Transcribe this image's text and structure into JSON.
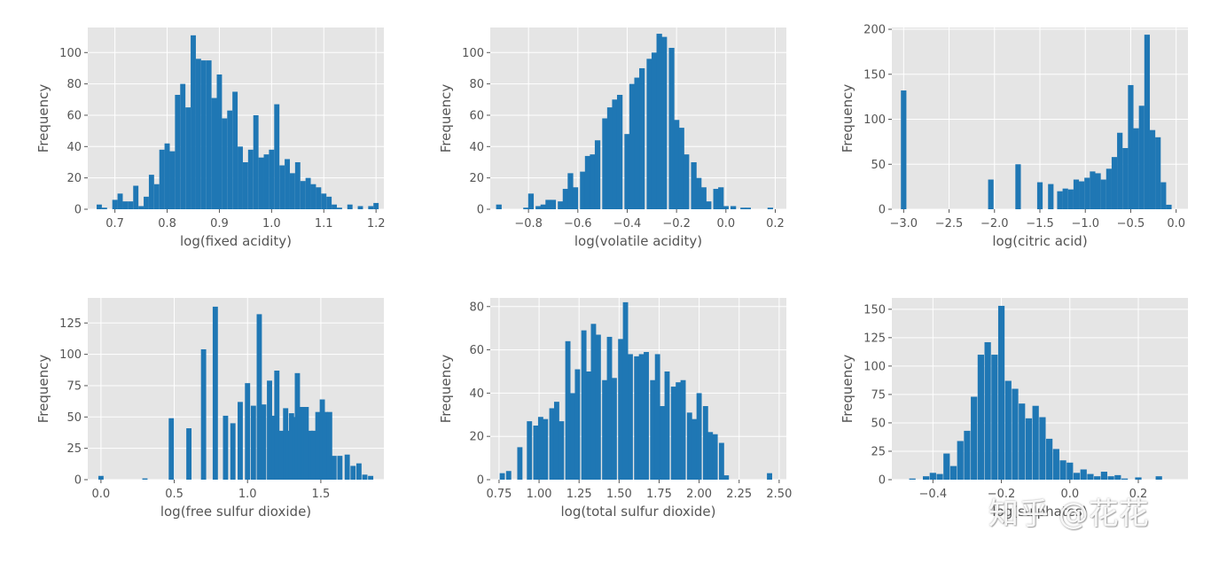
{
  "watermark": "知乎 @花花",
  "colors": {
    "bar": "#1f77b4",
    "panel_bg": "#e5e5e5",
    "grid": "#ffffff",
    "text": "#555555"
  },
  "chart_data": [
    {
      "type": "bar",
      "grid": true,
      "bar_width": 0.01,
      "xlabel": "log(fixed acidity)",
      "ylabel": "Frequency",
      "xlim": [
        0.648,
        1.215
      ],
      "ylim": [
        0,
        116
      ],
      "xticks": [
        0.7,
        0.8,
        0.9,
        1.0,
        1.1,
        1.2
      ],
      "yticks": [
        0,
        20,
        40,
        60,
        80,
        100
      ],
      "x": [
        0.67,
        0.68,
        0.69,
        0.7,
        0.71,
        0.72,
        0.73,
        0.74,
        0.75,
        0.76,
        0.77,
        0.78,
        0.79,
        0.8,
        0.81,
        0.82,
        0.83,
        0.84,
        0.85,
        0.86,
        0.87,
        0.88,
        0.89,
        0.9,
        0.91,
        0.92,
        0.93,
        0.94,
        0.95,
        0.96,
        0.97,
        0.98,
        0.99,
        1.0,
        1.01,
        1.02,
        1.03,
        1.04,
        1.05,
        1.06,
        1.07,
        1.08,
        1.09,
        1.1,
        1.11,
        1.12,
        1.13,
        1.14,
        1.15,
        1.16,
        1.17,
        1.18,
        1.19,
        1.2
      ],
      "values": [
        3,
        1,
        0,
        6,
        10,
        5,
        5,
        15,
        2,
        8,
        22,
        16,
        38,
        42,
        37,
        73,
        80,
        65,
        111,
        96,
        95,
        95,
        71,
        86,
        58,
        63,
        75,
        40,
        30,
        38,
        60,
        33,
        35,
        38,
        67,
        28,
        32,
        23,
        30,
        18,
        20,
        16,
        14,
        10,
        8,
        3,
        1,
        0,
        3,
        0,
        2,
        0,
        2,
        4
      ]
    },
    {
      "type": "bar",
      "grid": true,
      "bar_width": 0.0225,
      "xlabel": "log(volatile acidity)",
      "ylabel": "Frequency",
      "xlim": [
        -0.955,
        0.245
      ],
      "ylim": [
        0,
        116
      ],
      "xticks": [
        -0.8,
        -0.6,
        -0.4,
        -0.2,
        0.0,
        0.2
      ],
      "yticks": [
        0,
        20,
        40,
        60,
        80,
        100
      ],
      "x": [
        -0.92,
        -0.9,
        -0.87,
        -0.85,
        -0.83,
        -0.81,
        -0.79,
        -0.76,
        -0.74,
        -0.72,
        -0.7,
        -0.67,
        -0.65,
        -0.63,
        -0.61,
        -0.58,
        -0.56,
        -0.54,
        -0.52,
        -0.49,
        -0.47,
        -0.45,
        -0.43,
        -0.4,
        -0.38,
        -0.36,
        -0.34,
        -0.31,
        -0.29,
        -0.27,
        -0.25,
        -0.22,
        -0.2,
        -0.18,
        -0.16,
        -0.13,
        -0.11,
        -0.09,
        -0.07,
        -0.04,
        -0.02,
        0.0,
        0.03,
        0.05,
        0.07,
        0.09,
        0.12,
        0.14,
        0.16,
        0.18
      ],
      "values": [
        3,
        0,
        0,
        0,
        0,
        1,
        10,
        2,
        3,
        6,
        6,
        5,
        13,
        23,
        14,
        24,
        34,
        35,
        44,
        58,
        65,
        70,
        73,
        48,
        80,
        84,
        90,
        96,
        100,
        112,
        110,
        103,
        57,
        52,
        35,
        30,
        20,
        14,
        5,
        13,
        14,
        2,
        2,
        0,
        1,
        1,
        0,
        0,
        0,
        1
      ]
    },
    {
      "type": "bar",
      "grid": true,
      "bar_width": 0.0604,
      "xlabel": "log(citric acid)",
      "ylabel": "Frequency",
      "xlim": [
        -3.13,
        0.13
      ],
      "ylim": [
        0,
        202
      ],
      "xticks": [
        -3.0,
        -2.5,
        -2.0,
        -1.5,
        -1.0,
        -0.5,
        0.0
      ],
      "yticks": [
        0,
        50,
        100,
        150,
        200
      ],
      "x": [
        -3.0,
        -2.04,
        -1.74,
        -1.5,
        -1.38,
        -1.28,
        -1.22,
        -1.16,
        -1.1,
        -1.04,
        -0.98,
        -0.92,
        -0.86,
        -0.8,
        -0.74,
        -0.68,
        -0.62,
        -0.56,
        -0.5,
        -0.44,
        -0.38,
        -0.32,
        -0.26,
        -0.2,
        -0.14,
        -0.08
      ],
      "values": [
        132,
        33,
        50,
        30,
        28,
        20,
        23,
        22,
        33,
        31,
        35,
        42,
        40,
        33,
        45,
        58,
        85,
        68,
        138,
        90,
        115,
        194,
        88,
        80,
        30,
        5
      ]
    },
    {
      "type": "bar",
      "grid": true,
      "bar_width": 0.0355,
      "xlabel": "log(free sulfur dioxide)",
      "ylabel": "Frequency",
      "xlim": [
        -0.09,
        1.93
      ],
      "ylim": [
        0,
        145
      ],
      "xticks": [
        0.0,
        0.5,
        1.0,
        1.5
      ],
      "yticks": [
        0,
        25,
        50,
        75,
        100,
        125
      ],
      "x": [
        0.0,
        0.3,
        0.48,
        0.6,
        0.7,
        0.78,
        0.85,
        0.9,
        0.95,
        1.0,
        1.04,
        1.08,
        1.11,
        1.15,
        1.18,
        1.2,
        1.23,
        1.26,
        1.28,
        1.3,
        1.32,
        1.34,
        1.36,
        1.38,
        1.4,
        1.43,
        1.45,
        1.48,
        1.51,
        1.53,
        1.56,
        1.59,
        1.63,
        1.68,
        1.72,
        1.76,
        1.8,
        1.84
      ],
      "values": [
        3,
        1,
        49,
        41,
        104,
        138,
        51,
        45,
        62,
        77,
        59,
        132,
        60,
        79,
        51,
        87,
        39,
        57,
        39,
        53,
        50,
        85,
        58,
        58,
        58,
        39,
        39,
        54,
        64,
        54,
        54,
        19,
        19,
        20,
        11,
        13,
        4,
        3
      ]
    },
    {
      "type": "bar",
      "grid": true,
      "bar_width": 0.0325,
      "xlabel": "log(total sulfur dioxide)",
      "ylabel": "Frequency",
      "xlim": [
        0.695,
        2.545
      ],
      "ylim": [
        0,
        84
      ],
      "xticks": [
        0.75,
        1.0,
        1.25,
        1.5,
        1.75,
        2.0,
        2.25,
        2.5
      ],
      "yticks": [
        0,
        20,
        40,
        60,
        80
      ],
      "x": [
        0.77,
        0.81,
        0.85,
        0.88,
        0.91,
        0.94,
        0.98,
        1.01,
        1.04,
        1.08,
        1.11,
        1.14,
        1.18,
        1.21,
        1.24,
        1.28,
        1.31,
        1.34,
        1.37,
        1.41,
        1.44,
        1.47,
        1.51,
        1.54,
        1.57,
        1.61,
        1.64,
        1.67,
        1.71,
        1.74,
        1.77,
        1.8,
        1.84,
        1.87,
        1.9,
        1.94,
        1.97,
        2.0,
        2.04,
        2.07,
        2.1,
        2.14,
        2.17,
        2.44
      ],
      "values": [
        3,
        4,
        0,
        15,
        0,
        27,
        25,
        29,
        28,
        33,
        36,
        27,
        64,
        40,
        51,
        69,
        50,
        72,
        67,
        46,
        66,
        47,
        65,
        82,
        58,
        57,
        58,
        59,
        46,
        58,
        34,
        50,
        43,
        45,
        46,
        31,
        28,
        40,
        34,
        22,
        21,
        17,
        2,
        3
      ]
    },
    {
      "type": "bar",
      "grid": true,
      "bar_width": 0.0187,
      "xlabel": "log(sulphates)",
      "ylabel": "Frequency",
      "xlim": [
        -0.52,
        0.345
      ],
      "ylim": [
        0,
        160
      ],
      "xticks": [
        -0.4,
        -0.2,
        0.0,
        0.2
      ],
      "yticks": [
        0,
        25,
        50,
        75,
        100,
        125,
        150
      ],
      "x": [
        -0.46,
        -0.44,
        -0.42,
        -0.4,
        -0.38,
        -0.36,
        -0.34,
        -0.32,
        -0.3,
        -0.28,
        -0.26,
        -0.24,
        -0.22,
        -0.2,
        -0.18,
        -0.16,
        -0.14,
        -0.12,
        -0.1,
        -0.08,
        -0.06,
        -0.04,
        -0.02,
        0.0,
        0.02,
        0.04,
        0.06,
        0.08,
        0.1,
        0.12,
        0.14,
        0.16,
        0.18,
        0.2,
        0.22,
        0.24,
        0.26,
        0.28
      ],
      "values": [
        1,
        0,
        3,
        6,
        5,
        23,
        12,
        34,
        43,
        73,
        110,
        121,
        110,
        153,
        87,
        80,
        67,
        54,
        65,
        55,
        36,
        27,
        17,
        15,
        6,
        9,
        5,
        3,
        7,
        3,
        4,
        1,
        0,
        2,
        0,
        0,
        3,
        0
      ]
    }
  ]
}
